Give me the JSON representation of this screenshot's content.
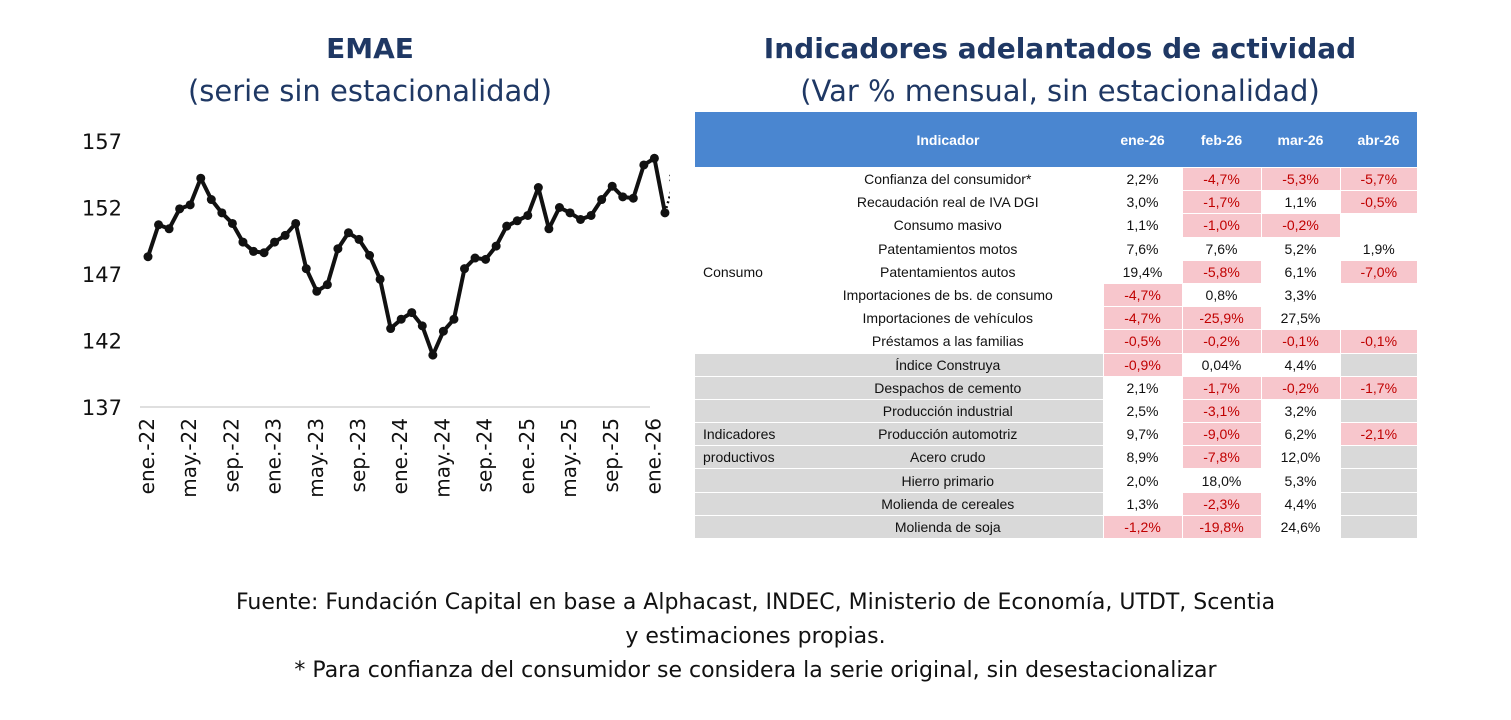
{
  "chart_data": {
    "type": "line",
    "title": "EMAE",
    "subtitle": "(serie sin estacionalidad)",
    "yticks": [
      157,
      152,
      147,
      142,
      137
    ],
    "ylim": [
      137,
      157
    ],
    "xticks": [
      "ene.-22",
      "may.-22",
      "sep.-22",
      "ene.-23",
      "may.-23",
      "sep.-23",
      "ene.-24",
      "may.-24",
      "sep.-24",
      "ene.-25",
      "may.-25",
      "sep.-25",
      "ene.-26"
    ],
    "series": [
      {
        "values": [
          148.3,
          150.7,
          150.4,
          151.9,
          152.2,
          154.2,
          152.6,
          151.6,
          150.8,
          149.4,
          148.7,
          148.6,
          149.4,
          149.9,
          150.8,
          147.4,
          145.7,
          146.2,
          148.9,
          150.1,
          149.6,
          148.4,
          146.6,
          142.9,
          143.6,
          144.1,
          143.1,
          140.9,
          142.7,
          143.6,
          147.4,
          148.2,
          148.1,
          149.1,
          150.6,
          151.0,
          151.4,
          153.5,
          150.4,
          152.0,
          151.6,
          151.1,
          151.4,
          152.6,
          153.6,
          152.8,
          152.7,
          155.2,
          155.7,
          151.6
        ],
        "estimate": 154.2,
        "estimate_marker": "*"
      }
    ]
  },
  "table": {
    "title": "Indicadores adelantados de actividad",
    "subtitle": "(Var % mensual, sin estacionalidad)",
    "headers": [
      "Indicador",
      "ene-26",
      "feb-26",
      "mar-26",
      "abr-26"
    ],
    "groups": [
      {
        "label": "Consumo",
        "rows": [
          {
            "name": "Confianza del consumidor*",
            "values": [
              "2,2%",
              "-4,7%",
              "-5,3%",
              "-5,7%"
            ]
          },
          {
            "name": "Recaudación real de IVA DGI",
            "values": [
              "3,0%",
              "-1,7%",
              "1,1%",
              "-0,5%"
            ]
          },
          {
            "name": "Consumo masivo",
            "values": [
              "1,1%",
              "-1,0%",
              "-0,2%",
              ""
            ]
          },
          {
            "name": "Patentamientos motos",
            "values": [
              "7,6%",
              "7,6%",
              "5,2%",
              "1,9%"
            ]
          },
          {
            "name": "Patentamientos autos",
            "values": [
              "19,4%",
              "-5,8%",
              "6,1%",
              "-7,0%"
            ]
          },
          {
            "name": "Importaciones de bs. de consumo",
            "values": [
              "-4,7%",
              "0,8%",
              "3,3%",
              ""
            ]
          },
          {
            "name": "Importaciones de vehículos",
            "values": [
              "-4,7%",
              "-25,9%",
              "27,5%",
              ""
            ]
          },
          {
            "name": "Préstamos a las familias",
            "values": [
              "-0,5%",
              "-0,2%",
              "-0,1%",
              "-0,1%"
            ]
          }
        ]
      },
      {
        "label_line1": "Indicadores",
        "label_line2": "productivos",
        "rows": [
          {
            "name": "Índice Construya",
            "values": [
              "-0,9%",
              "0,04%",
              "4,4%",
              ""
            ]
          },
          {
            "name": "Despachos de cemento",
            "values": [
              "2,1%",
              "-1,7%",
              "-0,2%",
              "-1,7%"
            ]
          },
          {
            "name": "Producción industrial",
            "values": [
              "2,5%",
              "-3,1%",
              "3,2%",
              ""
            ]
          },
          {
            "name": "Producción automotriz",
            "values": [
              "9,7%",
              "-9,0%",
              "6,2%",
              "-2,1%"
            ]
          },
          {
            "name": "Acero crudo",
            "values": [
              "8,9%",
              "-7,8%",
              "12,0%",
              ""
            ]
          },
          {
            "name": "Hierro primario",
            "values": [
              "2,0%",
              "18,0%",
              "5,3%",
              ""
            ]
          },
          {
            "name": "Molienda de cereales",
            "values": [
              "1,3%",
              "-2,3%",
              "4,4%",
              ""
            ]
          },
          {
            "name": "Molienda de soja",
            "values": [
              "-1,2%",
              "-19,8%",
              "24,6%",
              ""
            ]
          }
        ]
      }
    ]
  },
  "footer": {
    "line1": "Fuente: Fundación Capital en base a Alphacast, INDEC, Ministerio de Economía, UTDT, Scentia",
    "line2": "y estimaciones propias.",
    "line3": "* Para confianza del consumidor se considera la serie original, sin desestacionalizar"
  },
  "colors": {
    "title": "#1f3864",
    "header_bg": "#4a86d0",
    "negative_bg": "#f7c6cc",
    "negative_text": "#c00000",
    "group_bg": "#d9d9d9",
    "line": "#111111"
  }
}
